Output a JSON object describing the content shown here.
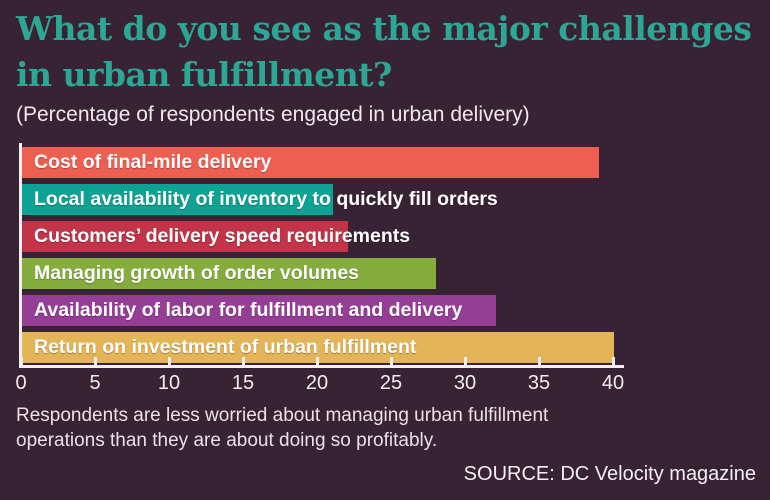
{
  "title": {
    "line1": "What do you see as the major challenges",
    "line2": "in urban fulfillment?"
  },
  "subtitle": "(Percentage of respondents engaged in urban delivery)",
  "chart_data": {
    "type": "bar",
    "orientation": "horizontal",
    "title": "What do you see as the major challenges in urban fulfillment?",
    "subtitle": "(Percentage of respondents engaged in urban delivery)",
    "categories": [
      "Cost of final-mile delivery",
      "Local availability of inventory to quickly fill orders",
      "Customers’ delivery speed requirements",
      "Managing growth of order volumes",
      "Availability of labor for fulfillment and delivery",
      "Return on investment of urban fulfillment"
    ],
    "values": [
      39,
      21,
      22,
      28,
      32,
      40
    ],
    "bar_colors": [
      "#ee5f52",
      "#0da394",
      "#c23447",
      "#85ad3e",
      "#943e95",
      "#e3b557"
    ],
    "xlabel": "",
    "ylabel": "",
    "xlim": [
      0,
      40
    ],
    "xticks": [
      0,
      5,
      10,
      15,
      20,
      25,
      30,
      35,
      40
    ],
    "grid": false,
    "legend": false
  },
  "footnote": "Respondents are less worried about managing urban fulfillment operations than they are about doing so profitably.",
  "source": "SOURCE: DC Velocity magazine",
  "colors": {
    "background": "#382334",
    "title_text": "#2ca795",
    "body_text": "#efe9ec",
    "axis": "#f2edf0",
    "bar_label_text": "#ffffff"
  }
}
